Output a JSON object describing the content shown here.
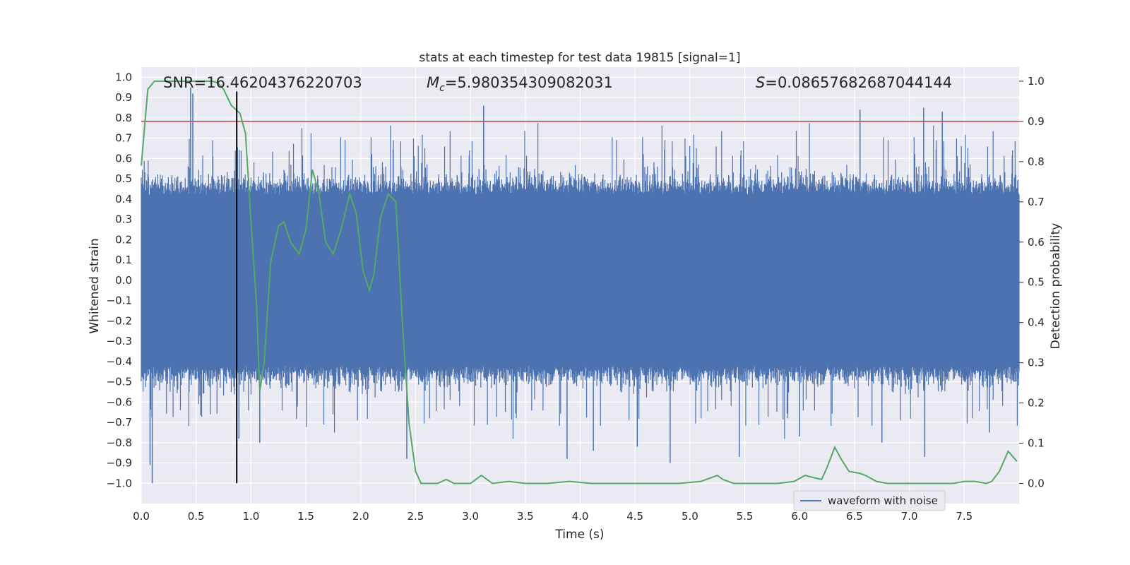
{
  "chart_data": {
    "type": "line",
    "title": "stats at each timestep for test data 19815 [signal=1]",
    "xlabel": "Time (s)",
    "ylabel": "Whitened strain",
    "y2label": "Detection probability",
    "xlim": [
      0,
      8.0
    ],
    "ylim": [
      -1.1,
      1.05
    ],
    "y2lim": [
      -0.05,
      1.035
    ],
    "x_ticks": [
      "0.0",
      "0.5",
      "1.0",
      "1.5",
      "2.0",
      "2.5",
      "3.0",
      "3.5",
      "4.0",
      "4.5",
      "5.0",
      "5.5",
      "6.0",
      "6.5",
      "7.0",
      "7.5"
    ],
    "y_ticks": [
      "1.0",
      "0.9",
      "0.8",
      "0.7",
      "0.6",
      "0.5",
      "0.4",
      "0.3",
      "0.2",
      "0.1",
      "0.0",
      "−0.1",
      "−0.2",
      "−0.3",
      "−0.4",
      "−0.5",
      "−0.6",
      "−0.7",
      "−0.8",
      "−0.9",
      "−1.0"
    ],
    "y2_ticks": [
      "1.0",
      "0.9",
      "0.8",
      "0.7",
      "0.6",
      "0.5",
      "0.4",
      "0.3",
      "0.2",
      "0.1",
      "0.0"
    ],
    "annotations": {
      "snr": "SNR=16.46204376220703",
      "mc_symbol": "M",
      "mc_sub": "c",
      "mc_value": "=5.980354309082031",
      "s_symbol": "S",
      "s_value": "=0.08657682687044144"
    },
    "threshold": 0.9,
    "marker_time": 0.87,
    "series": [
      {
        "name": "waveform with noise",
        "color": "#4c72b0",
        "kind": "noise",
        "envelope": 0.42,
        "spikes": [
          [
            0.45,
            0.95
          ],
          [
            0.47,
            0.92
          ],
          [
            0.1,
            -1.0
          ],
          [
            0.08,
            -0.91
          ],
          [
            0.89,
            -0.78
          ],
          [
            1.08,
            -0.8
          ],
          [
            3.12,
            0.86
          ],
          [
            2.42,
            -0.88
          ],
          [
            3.88,
            -0.88
          ],
          [
            4.12,
            -0.84
          ],
          [
            4.52,
            -0.82
          ],
          [
            4.82,
            -0.9
          ],
          [
            5.45,
            -0.87
          ],
          [
            6.0,
            -0.77
          ],
          [
            6.55,
            0.84
          ],
          [
            6.75,
            -0.8
          ],
          [
            7.13,
            0.85
          ],
          [
            7.14,
            -0.87
          ],
          [
            7.3,
            0.83
          ],
          [
            7.73,
            -0.75
          ]
        ]
      },
      {
        "name": "",
        "color": "#55a868",
        "kind": "probability",
        "x": [
          0.0,
          0.06,
          0.12,
          0.2,
          0.35,
          0.5,
          0.65,
          0.7,
          0.75,
          0.82,
          0.9,
          0.95,
          1.0,
          1.05,
          1.08,
          1.12,
          1.18,
          1.25,
          1.3,
          1.36,
          1.44,
          1.5,
          1.56,
          1.62,
          1.68,
          1.75,
          1.82,
          1.9,
          1.96,
          2.02,
          2.08,
          2.12,
          2.18,
          2.25,
          2.32,
          2.38,
          2.44,
          2.5,
          2.55,
          2.62,
          2.7,
          2.78,
          2.85,
          2.92,
          3.0,
          3.1,
          3.2,
          3.35,
          3.5,
          3.7,
          3.9,
          4.1,
          4.3,
          4.5,
          4.7,
          4.9,
          5.1,
          5.2,
          5.25,
          5.3,
          5.4,
          5.6,
          5.8,
          5.95,
          6.05,
          6.12,
          6.2,
          6.25,
          6.32,
          6.38,
          6.45,
          6.55,
          6.6,
          6.7,
          6.8,
          7.0,
          7.2,
          7.4,
          7.5,
          7.6,
          7.7,
          7.75,
          7.82,
          7.9,
          7.98
        ],
        "y": [
          0.79,
          0.98,
          1.0,
          1.0,
          1.0,
          1.0,
          1.0,
          0.995,
          0.98,
          0.94,
          0.92,
          0.87,
          0.65,
          0.45,
          0.23,
          0.3,
          0.55,
          0.64,
          0.65,
          0.6,
          0.57,
          0.63,
          0.78,
          0.72,
          0.6,
          0.57,
          0.63,
          0.72,
          0.67,
          0.53,
          0.48,
          0.52,
          0.66,
          0.72,
          0.7,
          0.4,
          0.15,
          0.03,
          0.0,
          0.0,
          0.0,
          0.01,
          0.0,
          0.0,
          0.0,
          0.02,
          0.0,
          0.005,
          0.0,
          0.0,
          0.005,
          0.0,
          0.0,
          0.0,
          0.0,
          0.0,
          0.005,
          0.015,
          0.02,
          0.01,
          0.0,
          0.0,
          0.0,
          0.005,
          0.02,
          0.015,
          0.01,
          0.04,
          0.09,
          0.06,
          0.03,
          0.025,
          0.02,
          0.005,
          0.0,
          0.0,
          0.0,
          0.0,
          0.005,
          0.005,
          0.0,
          0.005,
          0.03,
          0.08,
          0.055
        ]
      }
    ],
    "legend_location": "lower right"
  }
}
